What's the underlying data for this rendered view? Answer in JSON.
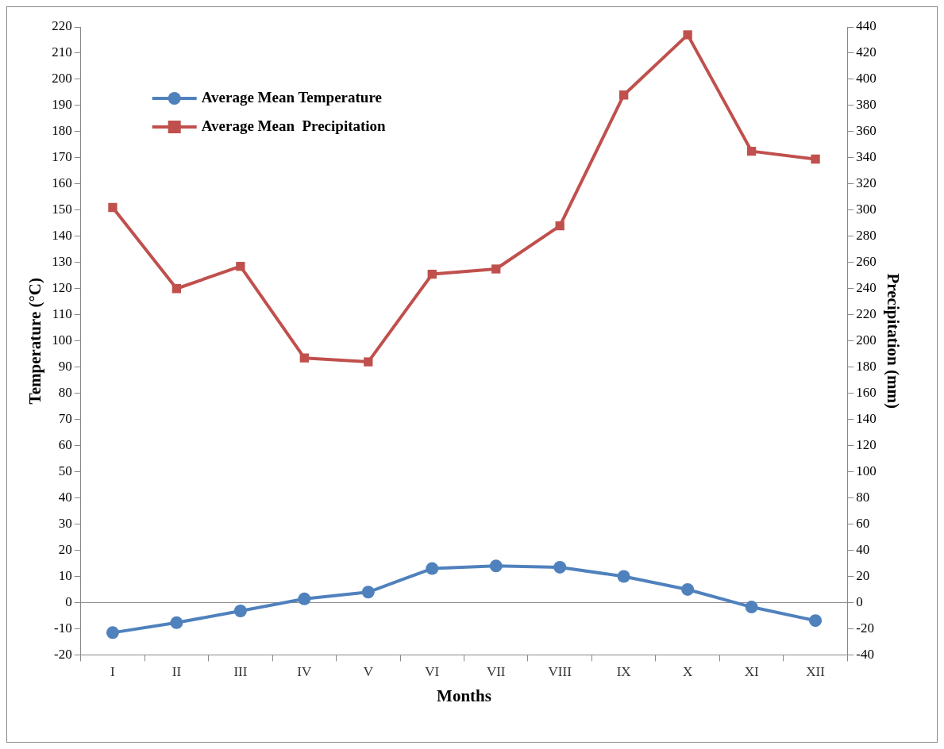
{
  "chart_data": {
    "type": "line",
    "xlabel": "Months",
    "ylabel": "Temperature (°C)",
    "y2label": "Precipitation (mm)",
    "categories": [
      "I",
      "II",
      "III",
      "IV",
      "V",
      "VI",
      "VII",
      "VIII",
      "IX",
      "X",
      "XI",
      "XII"
    ],
    "series": [
      {
        "name": "Average Mean Temperature",
        "color": "#4f81bd",
        "marker": "circle",
        "values": [
          -11.5,
          -7.7,
          -3.2,
          1.4,
          4,
          13,
          14,
          13.5,
          10,
          5,
          -1.7,
          -6.9
        ]
      },
      {
        "name": "Average Mean  Precipitation",
        "color": "#c0504d",
        "marker": "square",
        "axis": "y2",
        "values": [
          302,
          240,
          257,
          187,
          184,
          251,
          255,
          288,
          388,
          434,
          345,
          339
        ]
      }
    ],
    "ylim": [
      -20,
      220
    ],
    "yticks": [
      -20,
      -10,
      0,
      10,
      20,
      30,
      40,
      50,
      60,
      70,
      80,
      90,
      100,
      110,
      120,
      130,
      140,
      150,
      160,
      170,
      180,
      190,
      200,
      210,
      220
    ],
    "y2lim": [
      -40,
      440
    ],
    "y2ticks": [
      -40,
      -20,
      0,
      20,
      40,
      60,
      80,
      100,
      120,
      140,
      160,
      180,
      200,
      220,
      240,
      260,
      280,
      300,
      320,
      340,
      360,
      380,
      400,
      420,
      440
    ],
    "ref_lines": [
      {
        "axis": "y",
        "value": 0,
        "color": "#888888"
      }
    ],
    "grid": false,
    "legend": "top left",
    "line_style": "solid"
  }
}
